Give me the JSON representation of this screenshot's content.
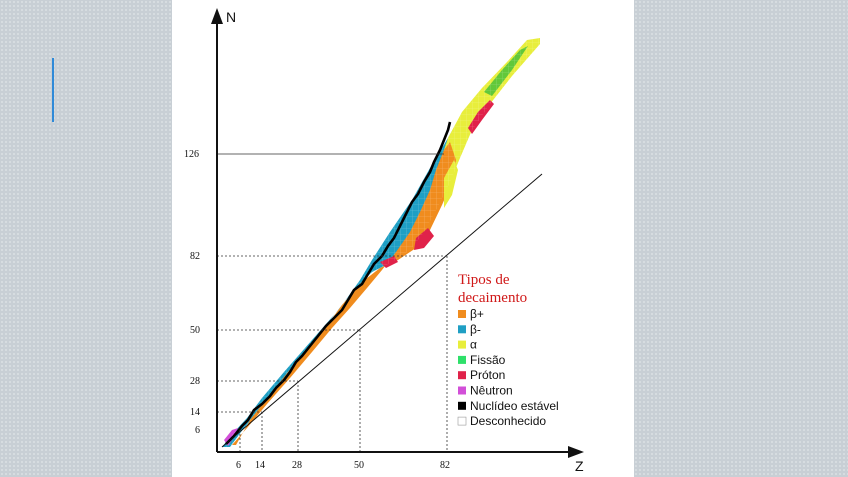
{
  "axes": {
    "y_title": "N",
    "x_title": "Z",
    "y_ticks": [
      {
        "label": "126",
        "value": 126
      },
      {
        "label": "82",
        "value": 82
      },
      {
        "label": "50",
        "value": 50
      },
      {
        "label": "28",
        "value": 28
      },
      {
        "label": "14",
        "value": 14
      },
      {
        "label": "6",
        "value": 6
      }
    ],
    "x_ticks": [
      {
        "label": "6",
        "value": 6
      },
      {
        "label": "14",
        "value": 14
      },
      {
        "label": "28",
        "value": 28
      },
      {
        "label": "50",
        "value": 50
      },
      {
        "label": "82",
        "value": 82
      }
    ]
  },
  "legend": {
    "title_line1": "Tipos de",
    "title_line2": "decaimento",
    "items": [
      {
        "label": "β+",
        "color": "#f08c1e"
      },
      {
        "label": "β-",
        "color": "#1f9fc4"
      },
      {
        "label": "α",
        "color": "#e8ee3c"
      },
      {
        "label": "Fissão",
        "color": "#2ee06a"
      },
      {
        "label": "Próton",
        "color": "#e0224a"
      },
      {
        "label": "Nêutron",
        "color": "#d24fd8"
      },
      {
        "label": "Nuclídeo estável",
        "color": "#000000"
      },
      {
        "label": "Desconhecido",
        "color": "#ffffff"
      }
    ]
  },
  "colors": {
    "beta_plus": "#f08c1e",
    "beta_minus": "#1f9fc4",
    "alpha": "#e8ee3c",
    "stable": "#000000",
    "accent": "#2f8ad8"
  }
}
